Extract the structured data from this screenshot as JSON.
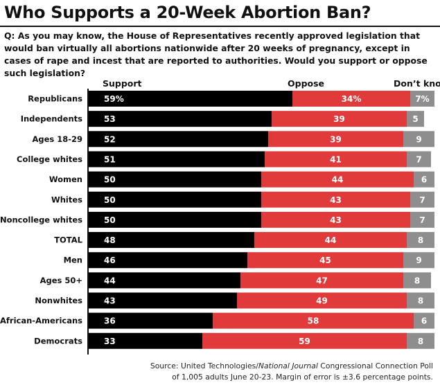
{
  "header": {
    "title": "Who Supports a 20-Week Abortion Ban?",
    "question": "Q: As you may know, the House of Representatives recently approved legislation that would ban virtually all abortions nationwide after 20 weeks of pregnancy, except in cases of rape and incest that are reported to authorities. Would you support or oppose such legislation?"
  },
  "source": {
    "prefix": "Source: United Technologies/",
    "publication": "National Journal",
    "suffix": " Congressional Connection Poll",
    "line2": "of 1,005 adults June 20-23. Margin of error is ±3.6 percentage points."
  },
  "colors": {
    "support": "#000000",
    "oppose": "#e03a3a",
    "dont_know": "#8e8e8e"
  },
  "chart_data": {
    "type": "bar",
    "orientation": "horizontal",
    "stacked": true,
    "title": "Who Supports a 20-Week Abortion Ban?",
    "categories": [
      "Republicans",
      "Independents",
      "Ages 18-29",
      "College whites",
      "Women",
      "Whites",
      "Noncollege whites",
      "TOTAL",
      "Men",
      "Ages 50+",
      "Nonwhites",
      "African-Americans",
      "Democrats"
    ],
    "series": [
      {
        "name": "Support",
        "values": [
          59,
          53,
          52,
          51,
          50,
          50,
          50,
          48,
          46,
          44,
          43,
          36,
          33
        ]
      },
      {
        "name": "Oppose",
        "values": [
          34,
          39,
          39,
          41,
          44,
          43,
          43,
          44,
          45,
          47,
          49,
          58,
          59
        ]
      },
      {
        "name": "Don’t know",
        "values": [
          7,
          5,
          9,
          7,
          6,
          7,
          7,
          8,
          9,
          8,
          8,
          6,
          8
        ]
      }
    ],
    "value_labels": [
      [
        "59%",
        "53",
        "52",
        "51",
        "50",
        "50",
        "50",
        "48",
        "46",
        "44",
        "43",
        "36",
        "33"
      ],
      [
        "34%",
        "39",
        "39",
        "41",
        "44",
        "43",
        "43",
        "44",
        "45",
        "47",
        "49",
        "58",
        "59"
      ],
      [
        "7%",
        "5",
        "9",
        "7",
        "6",
        "7",
        "7",
        "8",
        "9",
        "8",
        "8",
        "6",
        "8"
      ]
    ],
    "xlim": [
      0,
      100
    ],
    "grid": false
  }
}
